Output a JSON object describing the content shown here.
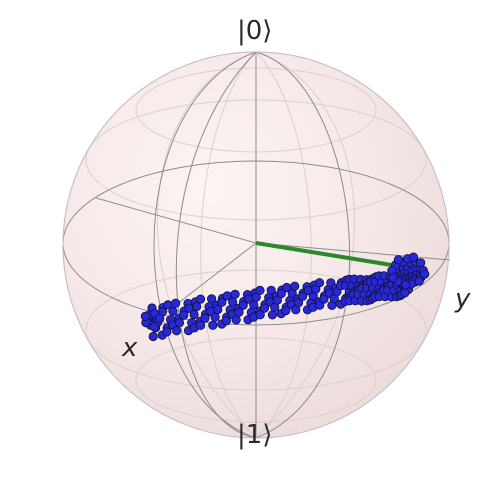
{
  "labels": {
    "top": "|0⟩",
    "bottom": "|1⟩",
    "x": "x",
    "y": "y"
  },
  "colors": {
    "sphere_fill": "#f6e6e6",
    "wire": "#8c8c8c",
    "wire_light": "#cfc6c6",
    "vector": "#2a8a2a",
    "points_fill": "#2828d8",
    "points_edge": "#111133"
  }
}
